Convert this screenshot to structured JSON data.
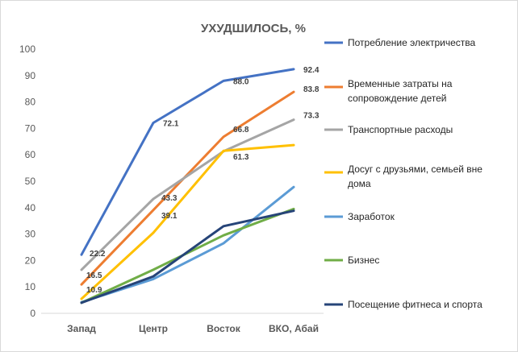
{
  "chart_data": {
    "type": "line",
    "title": "УХУДШИЛОСЬ, %",
    "categories": [
      "Запад",
      "Центр",
      "Восток",
      "ВКО, Абай"
    ],
    "ylim": [
      0,
      100
    ],
    "yticks": [
      0,
      10,
      20,
      30,
      40,
      50,
      60,
      70,
      80,
      90,
      100
    ],
    "grid": false,
    "legend_position": "right",
    "series": [
      {
        "name": "Потребление электричества",
        "color": "#4472C4",
        "values": [
          22.2,
          72.1,
          88.0,
          92.4
        ],
        "labels": [
          "22.2",
          "72.1",
          "88.0",
          "92.4"
        ]
      },
      {
        "name": "Временные затраты на сопровождение детей",
        "name_lines": [
          "Временные затраты на",
          "сопровождение детей"
        ],
        "color": "#ED7D31",
        "values": [
          10.9,
          39.1,
          66.8,
          83.8
        ],
        "labels": [
          "10.9",
          "39.1",
          "66.8",
          "83.8"
        ]
      },
      {
        "name": "Транспортные расходы",
        "color": "#A5A5A5",
        "values": [
          16.5,
          43.3,
          61.3,
          73.3
        ],
        "labels": [
          "16.5",
          "43.3",
          "61.3",
          "73.3"
        ]
      },
      {
        "name": "Досуг с друзьями, семьей вне дома",
        "name_lines": [
          "Досуг с друзьями, семьей вне",
          "дома"
        ],
        "color": "#FFC000",
        "values": [
          5.5,
          30.5,
          61.5,
          63.7
        ]
      },
      {
        "name": "Заработок",
        "color": "#5B9BD5",
        "values": [
          4.2,
          13.0,
          26.5,
          47.8
        ]
      },
      {
        "name": "Бизнес",
        "color": "#70AD47",
        "values": [
          4.0,
          16.5,
          29.5,
          39.5
        ]
      },
      {
        "name": "Посещение фитнеса и спорта",
        "color": "#264478",
        "values": [
          4.0,
          14.0,
          33.0,
          38.8
        ]
      }
    ]
  }
}
